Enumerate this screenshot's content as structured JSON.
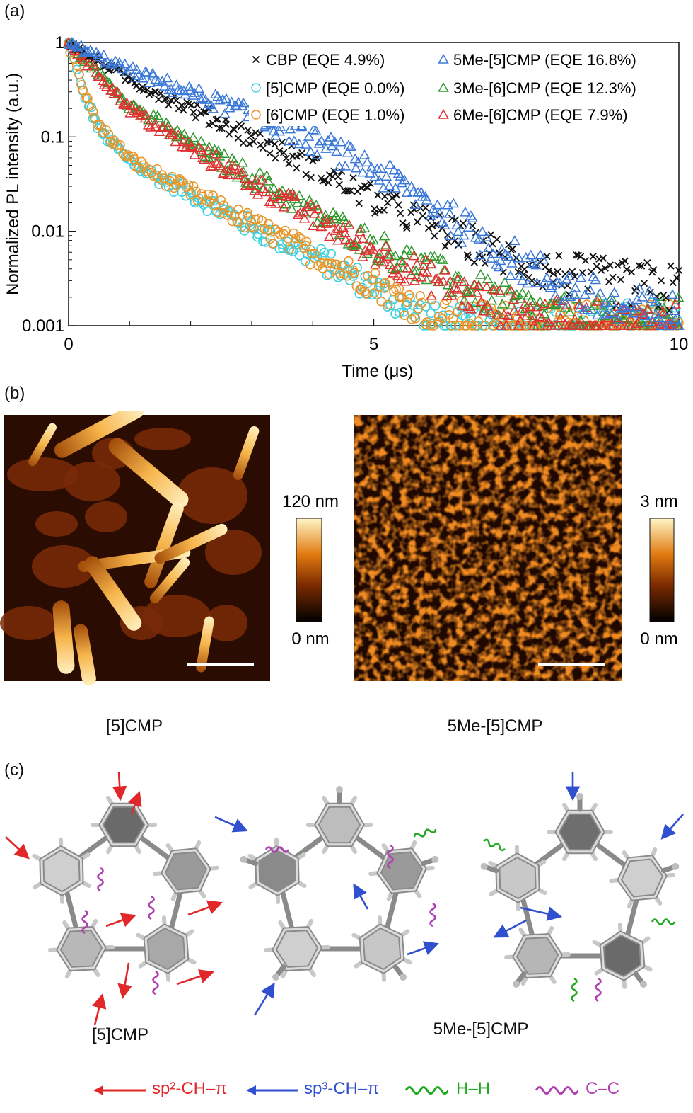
{
  "panels": {
    "a": "(a)",
    "b": "(b)",
    "c": "(c)"
  },
  "chart_data": {
    "type": "scatter",
    "ylabel": "Normalized PL intensity (a.u.)",
    "xlabel": "Time (μs)",
    "xlim": [
      0,
      10
    ],
    "ylim": [
      0.001,
      1
    ],
    "yscale": "log",
    "x_ticks": [
      "0",
      "5",
      "10"
    ],
    "y_ticks": [
      "0.001",
      "0.01",
      "0.1",
      "1"
    ],
    "legend_position": "top-right",
    "series": [
      {
        "name": "CBP (EQE 4.9%)",
        "marker": "x",
        "color": "#111111",
        "x": [
          0,
          1,
          2,
          3,
          4,
          5,
          6,
          7,
          8,
          9,
          10
        ],
        "y": [
          1.0,
          0.4,
          0.2,
          0.1,
          0.048,
          0.022,
          0.011,
          0.0058,
          0.0036,
          0.0028,
          0.0024
        ]
      },
      {
        "name": "5Me-[5]CMP (EQE 16.8%)",
        "marker": "triangle",
        "color": "#3a78d8",
        "x": [
          0,
          1,
          2,
          3,
          4,
          5,
          6,
          7,
          8,
          9,
          10
        ],
        "y": [
          1.0,
          0.5,
          0.29,
          0.17,
          0.09,
          0.045,
          0.018,
          0.0065,
          0.0028,
          0.0015,
          0.0012
        ]
      },
      {
        "name": "[5]CMP (EQE 0.0%)",
        "marker": "circle",
        "color": "#3fd0e0",
        "x": [
          0,
          0.25,
          0.5,
          1,
          1.5,
          2,
          3,
          4,
          5,
          6,
          7,
          8
        ],
        "y": [
          1.0,
          0.28,
          0.12,
          0.055,
          0.036,
          0.025,
          0.011,
          0.0055,
          0.0025,
          0.0011,
          0.001,
          0.001
        ]
      },
      {
        "name": "[6]CMP (EQE 1.0%)",
        "marker": "circle",
        "color": "#e8962a",
        "x": [
          0,
          0.25,
          0.5,
          1,
          1.5,
          2,
          3,
          4,
          5,
          6,
          7,
          8
        ],
        "y": [
          1.0,
          0.3,
          0.13,
          0.058,
          0.038,
          0.026,
          0.012,
          0.0058,
          0.0028,
          0.0013,
          0.0011,
          0.001
        ]
      },
      {
        "name": "3Me-[6]CMP (EQE 12.3%)",
        "marker": "triangle",
        "color": "#2e9a2e",
        "x": [
          0,
          1,
          2,
          3,
          4,
          5,
          6,
          7,
          8,
          9
        ],
        "y": [
          1.0,
          0.22,
          0.085,
          0.038,
          0.016,
          0.0072,
          0.0036,
          0.0019,
          0.0012,
          0.0011
        ]
      },
      {
        "name": "6Me-[6]CMP (EQE 7.9%)",
        "marker": "triangle",
        "color": "#e03030",
        "x": [
          0,
          1,
          2,
          3,
          4,
          5,
          6,
          7,
          8,
          9
        ],
        "y": [
          1.0,
          0.2,
          0.075,
          0.033,
          0.014,
          0.0062,
          0.003,
          0.0016,
          0.0011,
          0.001
        ]
      }
    ]
  },
  "afm": {
    "left": {
      "scale_top": "120 nm",
      "scale_bottom": "0 nm",
      "caption": "[5]CMP"
    },
    "right": {
      "scale_top": "3 nm",
      "scale_bottom": "0 nm",
      "caption": "5Me-[5]CMP"
    }
  },
  "structures": {
    "caption_left": "[5]CMP",
    "caption_right": "5Me-[5]CMP"
  },
  "key": {
    "sp2": "sp²-CH–π",
    "sp3": "sp³-CH–π",
    "hh": "H–H",
    "cc": "C–C"
  },
  "colors": {
    "sp2": "#e0282a",
    "sp3": "#3050d0",
    "hh": "#22a822",
    "cc": "#b040b0"
  }
}
